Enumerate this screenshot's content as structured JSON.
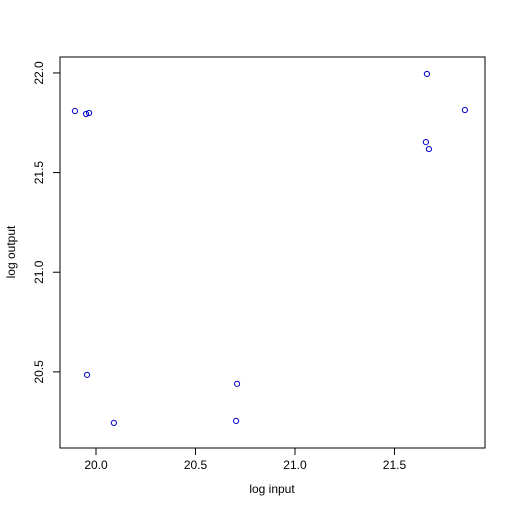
{
  "chart_data": {
    "type": "scatter",
    "x_label": "log input",
    "y_label": "log output",
    "x": [
      19.894,
      19.95,
      19.965,
      19.955,
      20.09,
      20.709,
      20.704,
      21.663,
      21.658,
      21.673,
      21.854
    ],
    "y": [
      21.809,
      21.794,
      21.799,
      20.485,
      20.244,
      20.44,
      20.254,
      21.995,
      21.653,
      21.618,
      21.814
    ],
    "color": "#0000cc",
    "xlim": [
      19.819,
      21.955
    ],
    "ylim": [
      20.118,
      22.08
    ],
    "xticks": [
      {
        "value": 20,
        "label": "20.0"
      },
      20.5,
      {
        "value": 21,
        "label": "21.0"
      },
      21.5
    ],
    "yticks": [
      20.5,
      {
        "value": 21,
        "label": "21.0"
      },
      21.5,
      {
        "value": 22,
        "label": "22.0"
      }
    ]
  }
}
